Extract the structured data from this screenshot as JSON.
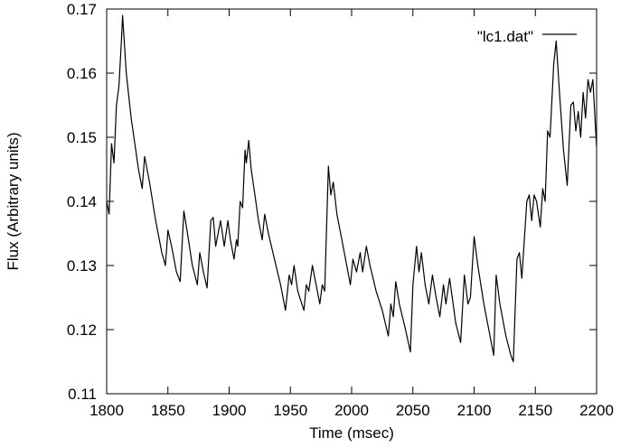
{
  "chart_data": {
    "type": "line",
    "title": "",
    "xlabel": "Time (msec)",
    "ylabel": "Flux (Arbitrary units)",
    "xlim": [
      1800,
      2200
    ],
    "ylim": [
      0.11,
      0.17
    ],
    "xticks": [
      1800,
      1850,
      1900,
      1950,
      2000,
      2050,
      2100,
      2150,
      2200
    ],
    "yticks": [
      0.11,
      0.12,
      0.13,
      0.14,
      0.15,
      0.16,
      0.17
    ],
    "xtick_labels": [
      "1800",
      "1850",
      "1900",
      "1950",
      "2000",
      "2050",
      "2100",
      "2150",
      "2200"
    ],
    "ytick_labels": [
      "0.11",
      "0.12",
      "0.13",
      "0.14",
      "0.15",
      "0.16",
      "0.17"
    ],
    "grid": false,
    "legend_position": "top-right",
    "series": [
      {
        "name": "\"lc1.dat\"",
        "color": "#000000",
        "points": [
          [
            1800,
            0.14
          ],
          [
            1802,
            0.138
          ],
          [
            1804,
            0.149
          ],
          [
            1806,
            0.146
          ],
          [
            1808,
            0.155
          ],
          [
            1810,
            0.158
          ],
          [
            1812,
            0.165
          ],
          [
            1813,
            0.169
          ],
          [
            1816,
            0.16
          ],
          [
            1820,
            0.153
          ],
          [
            1826,
            0.145
          ],
          [
            1829,
            0.142
          ],
          [
            1831,
            0.147
          ],
          [
            1835,
            0.143
          ],
          [
            1840,
            0.137
          ],
          [
            1845,
            0.132
          ],
          [
            1848,
            0.13
          ],
          [
            1850,
            0.1355
          ],
          [
            1853,
            0.133
          ],
          [
            1857,
            0.129
          ],
          [
            1860,
            0.1275
          ],
          [
            1863,
            0.1385
          ],
          [
            1866,
            0.135
          ],
          [
            1870,
            0.13
          ],
          [
            1874,
            0.127
          ],
          [
            1876,
            0.132
          ],
          [
            1879,
            0.129
          ],
          [
            1882,
            0.1265
          ],
          [
            1885,
            0.137
          ],
          [
            1887,
            0.1375
          ],
          [
            1889,
            0.133
          ],
          [
            1893,
            0.137
          ],
          [
            1896,
            0.133
          ],
          [
            1899,
            0.137
          ],
          [
            1901,
            0.134
          ],
          [
            1904,
            0.131
          ],
          [
            1906,
            0.134
          ],
          [
            1907,
            0.133
          ],
          [
            1909,
            0.14
          ],
          [
            1911,
            0.139
          ],
          [
            1913,
            0.148
          ],
          [
            1914,
            0.146
          ],
          [
            1916,
            0.1495
          ],
          [
            1918,
            0.145
          ],
          [
            1921,
            0.141
          ],
          [
            1924,
            0.137
          ],
          [
            1927,
            0.134
          ],
          [
            1929,
            0.138
          ],
          [
            1932,
            0.135
          ],
          [
            1937,
            0.131
          ],
          [
            1942,
            0.127
          ],
          [
            1946,
            0.123
          ],
          [
            1949,
            0.1285
          ],
          [
            1951,
            0.127
          ],
          [
            1953,
            0.13
          ],
          [
            1956,
            0.126
          ],
          [
            1961,
            0.123
          ],
          [
            1963,
            0.127
          ],
          [
            1965,
            0.126
          ],
          [
            1968,
            0.13
          ],
          [
            1971,
            0.127
          ],
          [
            1974,
            0.124
          ],
          [
            1976,
            0.127
          ],
          [
            1978,
            0.126
          ],
          [
            1981,
            0.1455
          ],
          [
            1983,
            0.141
          ],
          [
            1985,
            0.143
          ],
          [
            1988,
            0.138
          ],
          [
            1992,
            0.134
          ],
          [
            1996,
            0.13
          ],
          [
            1999,
            0.127
          ],
          [
            2001,
            0.131
          ],
          [
            2004,
            0.129
          ],
          [
            2007,
            0.132
          ],
          [
            2009,
            0.129
          ],
          [
            2012,
            0.133
          ],
          [
            2015,
            0.13
          ],
          [
            2020,
            0.126
          ],
          [
            2025,
            0.123
          ],
          [
            2030,
            0.119
          ],
          [
            2032,
            0.124
          ],
          [
            2034,
            0.122
          ],
          [
            2036,
            0.1275
          ],
          [
            2039,
            0.124
          ],
          [
            2044,
            0.12
          ],
          [
            2048,
            0.1165
          ],
          [
            2050,
            0.127
          ],
          [
            2053,
            0.133
          ],
          [
            2055,
            0.129
          ],
          [
            2057,
            0.132
          ],
          [
            2060,
            0.127
          ],
          [
            2063,
            0.124
          ],
          [
            2066,
            0.1285
          ],
          [
            2069,
            0.125
          ],
          [
            2072,
            0.122
          ],
          [
            2075,
            0.127
          ],
          [
            2077,
            0.124
          ],
          [
            2080,
            0.128
          ],
          [
            2085,
            0.121
          ],
          [
            2089,
            0.118
          ],
          [
            2092,
            0.1285
          ],
          [
            2095,
            0.124
          ],
          [
            2097,
            0.125
          ],
          [
            2100,
            0.1345
          ],
          [
            2103,
            0.13
          ],
          [
            2108,
            0.124
          ],
          [
            2113,
            0.119
          ],
          [
            2116,
            0.116
          ],
          [
            2118,
            0.1285
          ],
          [
            2121,
            0.124
          ],
          [
            2126,
            0.119
          ],
          [
            2130,
            0.116
          ],
          [
            2132,
            0.115
          ],
          [
            2135,
            0.131
          ],
          [
            2137,
            0.132
          ],
          [
            2139,
            0.128
          ],
          [
            2143,
            0.14
          ],
          [
            2145,
            0.141
          ],
          [
            2147,
            0.137
          ],
          [
            2149,
            0.141
          ],
          [
            2151,
            0.14
          ],
          [
            2154,
            0.136
          ],
          [
            2156,
            0.142
          ],
          [
            2158,
            0.14
          ],
          [
            2160,
            0.151
          ],
          [
            2162,
            0.15
          ],
          [
            2165,
            0.1615
          ],
          [
            2167,
            0.165
          ],
          [
            2170,
            0.156
          ],
          [
            2173,
            0.148
          ],
          [
            2176,
            0.1425
          ],
          [
            2179,
            0.155
          ],
          [
            2181,
            0.1555
          ],
          [
            2183,
            0.151
          ],
          [
            2185,
            0.154
          ],
          [
            2187,
            0.15
          ],
          [
            2189,
            0.157
          ],
          [
            2191,
            0.153
          ],
          [
            2193,
            0.159
          ],
          [
            2195,
            0.157
          ],
          [
            2197,
            0.159
          ],
          [
            2199,
            0.152
          ],
          [
            2200,
            0.1485
          ]
        ]
      }
    ]
  }
}
